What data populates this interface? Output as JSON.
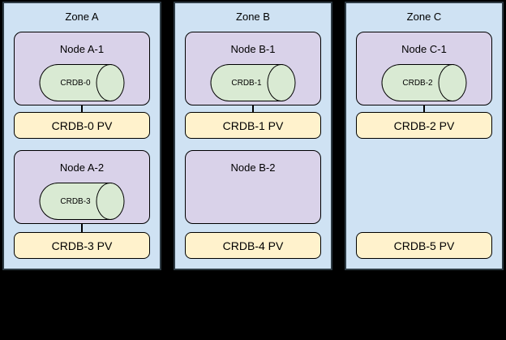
{
  "canvas": {
    "background": "#000000"
  },
  "colors": {
    "zone_fill": "#cfe2f3",
    "zone_border": "#2e3b44",
    "node_fill": "#d9d2e9",
    "cylinder_fill": "#d9ead3",
    "pv_fill": "#fff2cc",
    "line": "#000000",
    "text": "#000000"
  },
  "zones": [
    {
      "title": "Zone A",
      "rows": [
        {
          "node": "Node A-1",
          "cylinder": "CRDB-0",
          "connected": true,
          "pv": "CRDB-0 PV"
        },
        {
          "node": "Node A-2",
          "cylinder": "CRDB-3",
          "connected": true,
          "pv": "CRDB-3 PV"
        }
      ]
    },
    {
      "title": "Zone B",
      "rows": [
        {
          "node": "Node B-1",
          "cylinder": "CRDB-1",
          "connected": true,
          "pv": "CRDB-1 PV"
        },
        {
          "node": "Node B-2",
          "cylinder": null,
          "connected": false,
          "pv": "CRDB-4 PV"
        }
      ]
    },
    {
      "title": "Zone C",
      "rows": [
        {
          "node": "Node C-1",
          "cylinder": "CRDB-2",
          "connected": true,
          "pv": "CRDB-2 PV"
        },
        {
          "node": null,
          "cylinder": null,
          "connected": false,
          "pv": "CRDB-5 PV"
        }
      ]
    }
  ]
}
